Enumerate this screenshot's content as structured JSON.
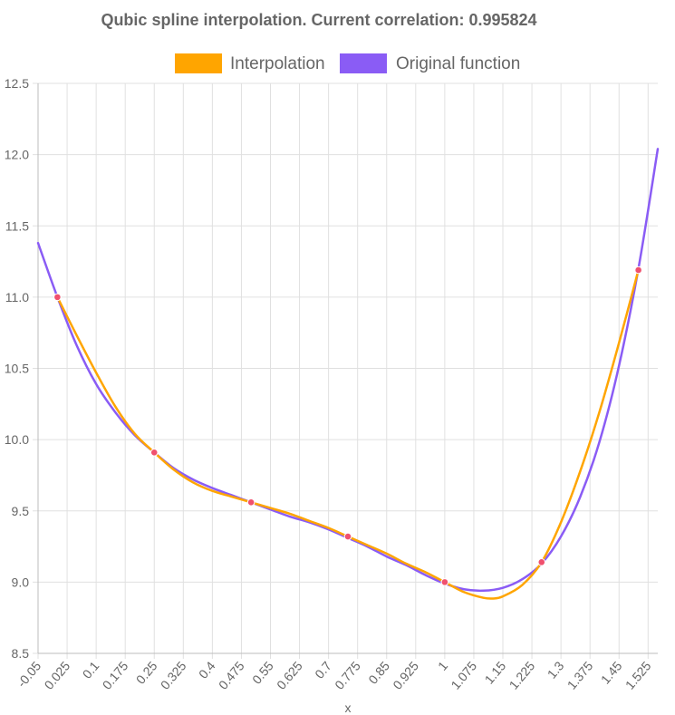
{
  "chart_data": {
    "type": "line",
    "title": "Qubic spline interpolation. Current correlation: 0.995824",
    "xlabel": "x",
    "ylabel": "",
    "xlim": [
      -0.05,
      1.55
    ],
    "ylim": [
      8.5,
      12.5
    ],
    "x_ticks": [
      "-0.05",
      "0.025",
      "0.1",
      "0.175",
      "0.25",
      "0.325",
      "0.4",
      "0.475",
      "0.55",
      "0.625",
      "0.7",
      "0.775",
      "0.85",
      "0.925",
      "1",
      "1.075",
      "1.15",
      "1.225",
      "1.3",
      "1.375",
      "1.45",
      "1.525"
    ],
    "y_ticks": [
      "8.5",
      "9.0",
      "9.5",
      "10.0",
      "10.5",
      "11.0",
      "11.5",
      "12.0",
      "12.5"
    ],
    "grid": true,
    "legend": "top-center",
    "series": [
      {
        "name": "Interpolation",
        "color": "#FFA500",
        "x": [
          0.0,
          0.05,
          0.1,
          0.15,
          0.2,
          0.25,
          0.3,
          0.35,
          0.4,
          0.45,
          0.5,
          0.55,
          0.6,
          0.65,
          0.7,
          0.75,
          0.8,
          0.85,
          0.9,
          0.95,
          1.0,
          1.05,
          1.1,
          1.125,
          1.15,
          1.2,
          1.25,
          1.3,
          1.35,
          1.4,
          1.45,
          1.5
        ],
        "y": [
          11.0,
          10.73,
          10.47,
          10.23,
          10.04,
          9.91,
          9.79,
          9.7,
          9.64,
          9.6,
          9.56,
          9.52,
          9.48,
          9.43,
          9.38,
          9.32,
          9.26,
          9.2,
          9.13,
          9.07,
          9.0,
          8.93,
          8.89,
          8.885,
          8.9,
          8.98,
          9.14,
          9.42,
          9.78,
          10.2,
          10.68,
          11.19
        ]
      },
      {
        "name": "Original function",
        "color": "#8A5CF5",
        "x": [
          -0.05,
          0.0,
          0.05,
          0.1,
          0.15,
          0.2,
          0.25,
          0.3,
          0.35,
          0.4,
          0.45,
          0.5,
          0.55,
          0.6,
          0.65,
          0.7,
          0.75,
          0.8,
          0.85,
          0.9,
          0.95,
          1.0,
          1.05,
          1.1,
          1.15,
          1.2,
          1.25,
          1.3,
          1.35,
          1.4,
          1.45,
          1.5,
          1.55
        ],
        "y": [
          11.38,
          11.0,
          10.66,
          10.39,
          10.19,
          10.03,
          9.91,
          9.8,
          9.72,
          9.66,
          9.61,
          9.56,
          9.51,
          9.46,
          9.42,
          9.37,
          9.31,
          9.25,
          9.18,
          9.12,
          9.05,
          8.99,
          8.95,
          8.94,
          8.96,
          9.02,
          9.13,
          9.32,
          9.6,
          9.99,
          10.52,
          11.2,
          12.04
        ]
      }
    ],
    "markers": {
      "color": "#F0506E",
      "x": [
        0.0,
        0.25,
        0.5,
        0.75,
        1.0,
        1.25,
        1.5
      ],
      "y": [
        11.0,
        9.91,
        9.56,
        9.32,
        9.0,
        9.14,
        11.19
      ]
    }
  }
}
